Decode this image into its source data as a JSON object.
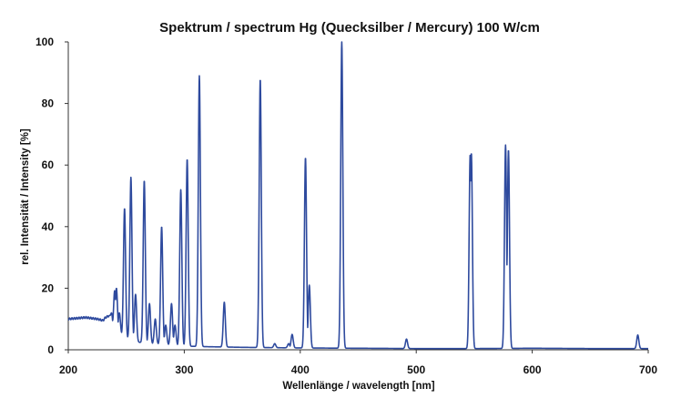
{
  "chart_data": {
    "type": "line",
    "title": "Spektrum / spectrum Hg (Quecksilber / Mercury) 100 W/cm",
    "xlabel": "Wellenlänge / wavelength [nm]",
    "ylabel": "rel. Intensität / Intensity [%]",
    "xlim": [
      200,
      700
    ],
    "ylim": [
      0,
      100
    ],
    "x_ticks": [
      200,
      300,
      400,
      500,
      600,
      700
    ],
    "y_ticks": [
      0,
      20,
      40,
      60,
      80,
      100
    ],
    "grid": false,
    "legend": "none",
    "line_color": "#2e4a9e",
    "baseline": [
      [
        200,
        10
      ],
      [
        215,
        10.5
      ],
      [
        225,
        10
      ],
      [
        230,
        9.5
      ],
      [
        232,
        10.5
      ],
      [
        235,
        11
      ],
      [
        238,
        8
      ],
      [
        240,
        6
      ],
      [
        245,
        5
      ],
      [
        250,
        4
      ],
      [
        255,
        3
      ],
      [
        260,
        2.5
      ],
      [
        270,
        2
      ],
      [
        280,
        1.8
      ],
      [
        290,
        1.5
      ],
      [
        300,
        1.2
      ],
      [
        320,
        1
      ],
      [
        350,
        0.8
      ],
      [
        400,
        0.6
      ],
      [
        450,
        0.5
      ],
      [
        500,
        0.4
      ],
      [
        550,
        0.4
      ],
      [
        600,
        0.5
      ],
      [
        650,
        0.4
      ],
      [
        700,
        0.4
      ]
    ],
    "peaks": [
      {
        "wavelength": 237,
        "intensity": 12
      },
      {
        "wavelength": 240,
        "intensity": 19
      },
      {
        "wavelength": 241.5,
        "intensity": 20
      },
      {
        "wavelength": 244,
        "intensity": 12
      },
      {
        "wavelength": 248.5,
        "intensity": 46
      },
      {
        "wavelength": 254,
        "intensity": 56
      },
      {
        "wavelength": 258,
        "intensity": 18
      },
      {
        "wavelength": 265.5,
        "intensity": 55
      },
      {
        "wavelength": 270,
        "intensity": 15
      },
      {
        "wavelength": 275,
        "intensity": 10
      },
      {
        "wavelength": 280.5,
        "intensity": 40
      },
      {
        "wavelength": 284,
        "intensity": 8
      },
      {
        "wavelength": 289,
        "intensity": 15
      },
      {
        "wavelength": 292,
        "intensity": 8
      },
      {
        "wavelength": 297,
        "intensity": 52
      },
      {
        "wavelength": 302.5,
        "intensity": 62
      },
      {
        "wavelength": 313,
        "intensity": 89
      },
      {
        "wavelength": 334.5,
        "intensity": 15.5
      },
      {
        "wavelength": 365.5,
        "intensity": 88
      },
      {
        "wavelength": 378,
        "intensity": 2
      },
      {
        "wavelength": 390,
        "intensity": 2
      },
      {
        "wavelength": 393,
        "intensity": 5
      },
      {
        "wavelength": 404.5,
        "intensity": 62.5
      },
      {
        "wavelength": 407.8,
        "intensity": 21
      },
      {
        "wavelength": 435.8,
        "intensity": 100
      },
      {
        "wavelength": 491.6,
        "intensity": 3.5
      },
      {
        "wavelength": 546.5,
        "intensity": 63.5
      },
      {
        "wavelength": 547.5,
        "intensity": 64
      },
      {
        "wavelength": 577,
        "intensity": 66.5
      },
      {
        "wavelength": 579.5,
        "intensity": 65
      },
      {
        "wavelength": 691,
        "intensity": 4.8
      }
    ]
  }
}
